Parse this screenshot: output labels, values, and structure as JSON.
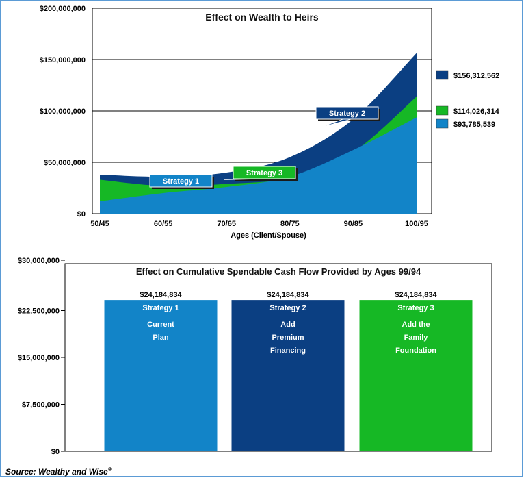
{
  "source": {
    "text": "Source: Wealthy and Wise",
    "mark": "®"
  },
  "chart_data": [
    {
      "type": "area",
      "title": "Effect on Wealth to Heirs",
      "xlabel": "Ages (Client/Spouse)",
      "ylabel": "",
      "x": [
        "50/45",
        "60/55",
        "70/65",
        "80/75",
        "90/85",
        "100/95"
      ],
      "ylim": [
        0,
        200000000
      ],
      "yticks": [
        "$0",
        "$50,000,000",
        "$100,000,000",
        "$150,000,000",
        "$200,000,000"
      ],
      "grid": true,
      "series": [
        {
          "key": "s2",
          "color": "#0b3f82",
          "values": [
            38000000,
            36000000,
            40000000,
            55000000,
            92000000,
            156312562
          ],
          "end_label": "$156,312,562"
        },
        {
          "key": "s3",
          "color": "#16b825",
          "values": [
            33000000,
            27000000,
            29000000,
            35000000,
            60000000,
            114026314
          ],
          "end_label": "$114,026,314"
        },
        {
          "key": "s1",
          "color": "#1284c8",
          "values": [
            12000000,
            20000000,
            26000000,
            36000000,
            62000000,
            93785539
          ],
          "end_label": "$93,785,539"
        }
      ],
      "callouts": [
        {
          "text": "Strategy 1",
          "color": "#1284c8",
          "x_index": 2.0,
          "value": 28000000
        },
        {
          "text": "Strategy 3",
          "color": "#16b825",
          "x_index": 3.0,
          "value": 33000000
        },
        {
          "text": "Strategy 2",
          "color": "#0b3f82",
          "x_index": 4.0,
          "value": 84000000
        }
      ]
    },
    {
      "type": "bar",
      "title": "Effect on Cumulative Spendable Cash Flow Provided by Ages 99/94",
      "ylim": [
        0,
        30000000
      ],
      "yticks": [
        "$0",
        "$7,500,000",
        "$15,000,000",
        "$22,500,000",
        "$30,000,000"
      ],
      "grid": false,
      "bars": [
        {
          "value": 24184834,
          "value_label": "$24,184,834",
          "name": "Strategy 1",
          "lines": [
            "Current",
            "Plan"
          ],
          "color": "#1284c8"
        },
        {
          "value": 24184834,
          "value_label": "$24,184,834",
          "name": "Strategy 2",
          "lines": [
            "Add",
            "Premium",
            "Financing"
          ],
          "color": "#0b3f82"
        },
        {
          "value": 24184834,
          "value_label": "$24,184,834",
          "name": "Strategy 3",
          "lines": [
            "Add the",
            "Family",
            "Foundation"
          ],
          "color": "#16b825"
        }
      ]
    }
  ]
}
